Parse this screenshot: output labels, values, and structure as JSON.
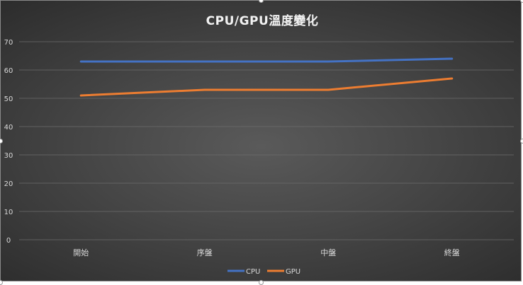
{
  "chart_data": {
    "type": "line",
    "title": "CPU/GPU溫度變化",
    "categories": [
      "開始",
      "序盤",
      "中盤",
      "終盤"
    ],
    "series": [
      {
        "name": "CPU",
        "values": [
          63,
          63,
          63,
          64
        ],
        "color": "#4472c4"
      },
      {
        "name": "GPU",
        "values": [
          51,
          53,
          53,
          57
        ],
        "color": "#ed7d31"
      }
    ],
    "ylim": [
      0,
      70
    ],
    "yticks": [
      0,
      10,
      20,
      30,
      40,
      50,
      60,
      70
    ],
    "grid": true,
    "legend_position": "bottom",
    "colors": {
      "gridline": "#6c6c6c",
      "text": "#d9d9d9"
    }
  }
}
